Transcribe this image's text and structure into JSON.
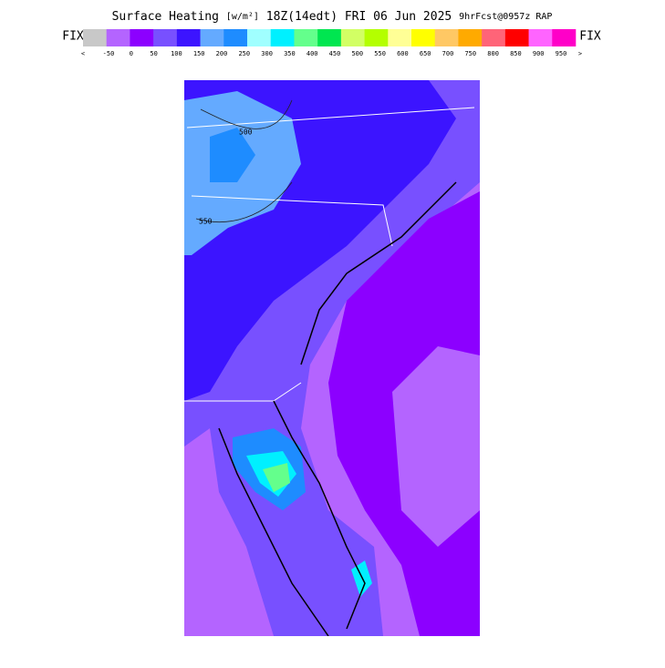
{
  "header": {
    "title": "Surface Heating",
    "units": "[w/m²]",
    "valid": "18Z(14edt) FRI 06 Jun 2025",
    "forecast": "9hrFcst@0957z RAP"
  },
  "colorbar": {
    "left_label": "FIX",
    "right_label": "FIX",
    "low_arrow": "<",
    "high_arrow": ">",
    "colors": [
      "#c8c8c8",
      "#b464ff",
      "#8c00ff",
      "#7850ff",
      "#3c14ff",
      "#64aaff",
      "#1e8cff",
      "#a0ffff",
      "#00f0ff",
      "#64ff8c",
      "#00e650",
      "#d2ff64",
      "#b4ff00",
      "#ffff96",
      "#ffff00",
      "#ffc864",
      "#ffaa00",
      "#ff6478",
      "#ff0000",
      "#ff64ff",
      "#ff00c8"
    ],
    "labels": [
      "-50",
      "0",
      "50",
      "100",
      "150",
      "200",
      "250",
      "300",
      "350",
      "400",
      "450",
      "500",
      "550",
      "600",
      "650",
      "700",
      "750",
      "800",
      "850",
      "900",
      "950"
    ]
  },
  "map": {
    "contour_labels": [
      "500",
      "550"
    ]
  }
}
